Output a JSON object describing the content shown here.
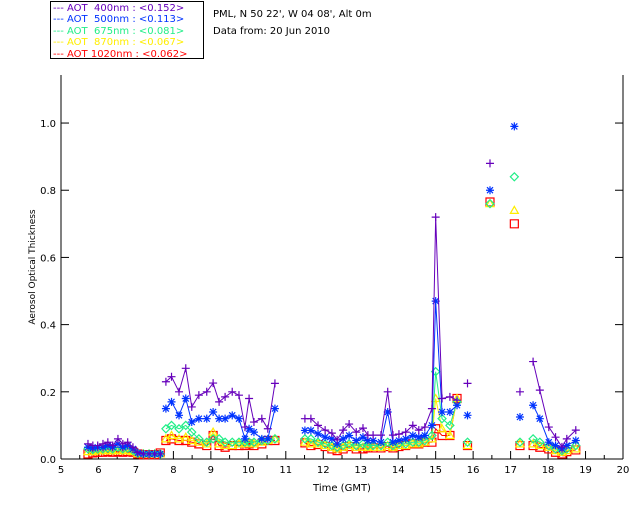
{
  "header": {
    "location": "PML, N 50 22', W 04 08', Alt 0m",
    "date": "Data from: 20 Jun 2010"
  },
  "legend": [
    {
      "label": "--- AOT  400nm : <0.152>",
      "color": "#6600bb",
      "marker": "plus"
    },
    {
      "label": "--- AOT  500nm : <0.113>",
      "color": "#0033ff",
      "marker": "star"
    },
    {
      "label": "--- AOT  675nm : <0.081>",
      "color": "#22ee88",
      "marker": "diamond"
    },
    {
      "label": "--- AOT  870nm : <0.067>",
      "color": "#ffee00",
      "marker": "triangle"
    },
    {
      "label": "--- AOT 1020nm : <0.062>",
      "color": "#ff0000",
      "marker": "square"
    }
  ],
  "chart_data": {
    "type": "line",
    "xlabel": "Time (GMT)",
    "ylabel": "Aerosol Optical Thickness",
    "xlim": [
      5,
      20
    ],
    "ylim": [
      0,
      1.143
    ],
    "xticks": [
      "5",
      "6",
      "7",
      "8",
      "9",
      "10",
      "11",
      "12",
      "13",
      "14",
      "15",
      "16",
      "17",
      "18",
      "19",
      "20"
    ],
    "yticks": [
      "0.0",
      "0.2",
      "0.4",
      "0.6",
      "0.8",
      "1.0"
    ],
    "series_names": [
      "AOT 400nm",
      "AOT 500nm",
      "AOT 675nm",
      "AOT 870nm",
      "AOT 1020nm"
    ],
    "segments": [
      {
        "x": [
          5.72,
          5.85,
          5.98,
          6.12,
          6.25,
          6.38,
          6.52,
          6.65,
          6.78,
          6.92,
          7.05,
          7.2,
          7.35,
          7.5,
          7.65
        ],
        "values": [
          [
            0.045,
            0.04,
            0.04,
            0.045,
            0.05,
            0.04,
            0.06,
            0.045,
            0.05,
            0.035,
            0.02,
            0.015,
            0.015,
            0.015,
            0.015
          ],
          [
            0.035,
            0.032,
            0.035,
            0.035,
            0.04,
            0.035,
            0.045,
            0.035,
            0.04,
            0.03,
            0.018,
            0.015,
            0.015,
            0.015,
            0.015
          ],
          [
            0.03,
            0.028,
            0.03,
            0.03,
            0.032,
            0.03,
            0.035,
            0.03,
            0.032,
            0.026,
            0.017,
            0.015,
            0.015,
            0.015,
            0.015
          ],
          [
            0.022,
            0.022,
            0.024,
            0.024,
            0.025,
            0.024,
            0.026,
            0.024,
            0.025,
            0.022,
            0.016,
            0.015,
            0.015,
            0.015,
            0.015
          ],
          [
            0.015,
            0.018,
            0.02,
            0.02,
            0.022,
            0.02,
            0.022,
            0.02,
            0.022,
            0.02,
            0.015,
            0.013,
            0.013,
            0.013,
            0.018
          ]
        ]
      },
      {
        "x": [
          7.8,
          7.95,
          8.15,
          8.33,
          8.49,
          8.68,
          8.89,
          9.06,
          9.22,
          9.38,
          9.57,
          9.75,
          9.91,
          10.02,
          10.15,
          10.36,
          10.52,
          10.71
        ],
        "values": [
          [
            0.23,
            0.245,
            0.2,
            0.27,
            0.155,
            0.19,
            0.2,
            0.226,
            0.17,
            0.185,
            0.2,
            0.19,
            0.095,
            0.18,
            0.11,
            0.12,
            0.09,
            0.225
          ],
          [
            0.15,
            0.17,
            0.13,
            0.18,
            0.11,
            0.12,
            0.12,
            0.14,
            0.12,
            0.12,
            0.13,
            0.12,
            0.06,
            0.09,
            0.08,
            0.06,
            0.06,
            0.15
          ],
          [
            0.09,
            0.1,
            0.09,
            0.1,
            0.08,
            0.06,
            0.05,
            0.06,
            0.06,
            0.05,
            0.05,
            0.05,
            0.05,
            0.05,
            0.05,
            0.055,
            0.055,
            0.06
          ],
          [
            0.06,
            0.07,
            0.06,
            0.065,
            0.055,
            0.05,
            0.045,
            0.08,
            0.045,
            0.04,
            0.04,
            0.045,
            0.045,
            0.05,
            0.045,
            0.05,
            0.055,
            0.06
          ],
          [
            0.055,
            0.06,
            0.055,
            0.055,
            0.05,
            0.045,
            0.04,
            0.07,
            0.04,
            0.035,
            0.04,
            0.04,
            0.04,
            0.045,
            0.04,
            0.045,
            0.055,
            0.055
          ]
        ]
      },
      {
        "x": [
          11.51,
          11.67,
          11.86,
          12.05,
          12.23,
          12.37,
          12.53,
          12.69,
          12.88,
          13.06,
          13.19,
          13.33,
          13.54,
          13.72,
          13.86,
          14.02,
          14.2,
          14.39,
          14.55,
          14.71,
          14.9,
          15.0,
          15.17,
          15.38,
          15.57
        ],
        "values": [
          [
            0.12,
            0.12,
            0.1,
            0.086,
            0.077,
            0.057,
            0.086,
            0.104,
            0.08,
            0.092,
            0.071,
            0.071,
            0.071,
            0.2,
            0.071,
            0.074,
            0.08,
            0.1,
            0.086,
            0.095,
            0.15,
            0.72,
            0.18,
            0.185,
            0.175
          ],
          [
            0.085,
            0.085,
            0.075,
            0.065,
            0.06,
            0.045,
            0.06,
            0.07,
            0.055,
            0.065,
            0.055,
            0.055,
            0.05,
            0.14,
            0.05,
            0.055,
            0.06,
            0.07,
            0.065,
            0.07,
            0.1,
            0.47,
            0.14,
            0.14,
            0.16
          ],
          [
            0.06,
            0.06,
            0.05,
            0.045,
            0.04,
            0.035,
            0.04,
            0.045,
            0.04,
            0.045,
            0.04,
            0.04,
            0.04,
            0.05,
            0.04,
            0.045,
            0.045,
            0.05,
            0.05,
            0.055,
            0.07,
            0.26,
            0.12,
            0.1,
            0.17
          ],
          [
            0.05,
            0.045,
            0.045,
            0.04,
            0.035,
            0.03,
            0.035,
            0.04,
            0.035,
            0.035,
            0.035,
            0.035,
            0.035,
            0.04,
            0.035,
            0.04,
            0.04,
            0.045,
            0.045,
            0.05,
            0.06,
            0.18,
            0.09,
            0.07,
            0.18
          ],
          [
            0.048,
            0.04,
            0.043,
            0.037,
            0.03,
            0.025,
            0.03,
            0.037,
            0.03,
            0.03,
            0.033,
            0.033,
            0.033,
            0.037,
            0.033,
            0.037,
            0.04,
            0.045,
            0.045,
            0.05,
            0.05,
            0.09,
            0.07,
            0.07,
            0.18
          ]
        ]
      },
      {
        "x": [
          15.85
        ],
        "values": [
          [
            0.225
          ],
          [
            0.13
          ],
          [
            0.05
          ],
          [
            0.04
          ],
          [
            0.04
          ]
        ]
      },
      {
        "x": [
          16.45
        ],
        "values": [
          [
            0.88
          ],
          [
            0.8
          ],
          [
            0.76
          ],
          [
            0.76
          ],
          [
            0.765
          ]
        ]
      },
      {
        "x": [
          17.1
        ],
        "values": [
          [
            null
          ],
          [
            0.99
          ],
          [
            0.84
          ],
          [
            0.74
          ],
          [
            0.7
          ]
        ]
      },
      {
        "x": [
          17.25
        ],
        "values": [
          [
            0.2
          ],
          [
            0.125
          ],
          [
            0.05
          ],
          [
            0.045
          ],
          [
            0.04
          ]
        ]
      },
      {
        "x": [
          17.6,
          17.78,
          18.02,
          18.2,
          18.37,
          18.5,
          18.74
        ],
        "values": [
          [
            0.29,
            0.205,
            0.095,
            0.065,
            0.036,
            0.06,
            0.086
          ],
          [
            0.16,
            0.12,
            0.05,
            0.04,
            0.03,
            0.04,
            0.055
          ],
          [
            0.06,
            0.05,
            0.04,
            0.03,
            0.025,
            0.03,
            0.04
          ],
          [
            0.045,
            0.04,
            0.035,
            0.025,
            0.02,
            0.025,
            0.03
          ],
          [
            0.04,
            0.035,
            0.03,
            0.02,
            0.015,
            0.022,
            0.027
          ]
        ]
      }
    ]
  }
}
